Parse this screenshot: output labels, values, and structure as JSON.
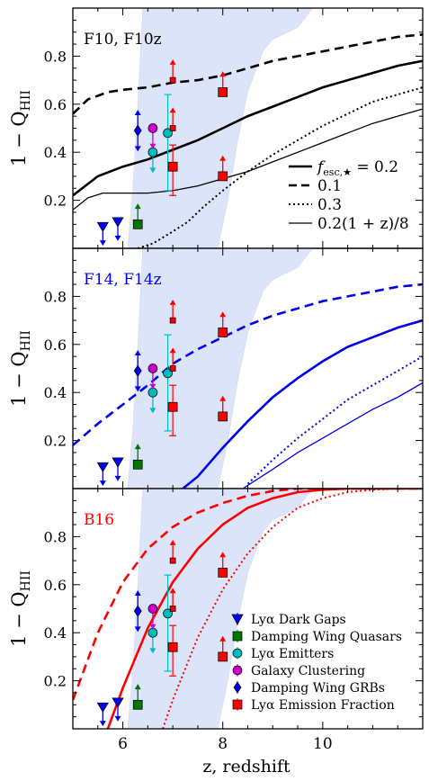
{
  "figure": {
    "xlabel": "z, redshift",
    "ylabel": "1 − Q",
    "ylabel_sub": "HII"
  },
  "chart_data": [
    {
      "type": "line",
      "title": "F10,  F10z",
      "title_color": "#000000",
      "color": "#000000",
      "xlim": [
        5,
        12
      ],
      "ylim": [
        0,
        1
      ],
      "xticks": [
        6,
        8,
        10
      ],
      "yticks": [
        0.2,
        0.4,
        0.6,
        0.8
      ],
      "shaded_band": {
        "color": "#dbe4f8",
        "lower": [
          [
            6.1,
            0.0
          ],
          [
            6.2,
            0.25
          ],
          [
            6.3,
            0.6
          ],
          [
            6.4,
            1.0
          ]
        ],
        "upper": [
          [
            7.9,
            0.0
          ],
          [
            8.1,
            0.2
          ],
          [
            8.3,
            0.45
          ],
          [
            8.5,
            0.65
          ],
          [
            8.8,
            0.82
          ],
          [
            9.0,
            0.87
          ],
          [
            9.5,
            0.92
          ],
          [
            9.8,
            1.0
          ]
        ]
      },
      "series": [
        {
          "name": "f_esc,★ = 0.2",
          "style": "solid-thick",
          "x": [
            5,
            5.5,
            6,
            6.5,
            7,
            7.5,
            8,
            8.5,
            9,
            9.5,
            10,
            10.5,
            11,
            11.5,
            12
          ],
          "y": [
            0.22,
            0.3,
            0.34,
            0.37,
            0.41,
            0.45,
            0.5,
            0.55,
            0.59,
            0.63,
            0.67,
            0.7,
            0.73,
            0.76,
            0.78
          ]
        },
        {
          "name": "0.1",
          "style": "dashed-thick",
          "x": [
            5,
            5.3,
            5.7,
            6,
            6.5,
            7,
            7.5,
            8,
            8.5,
            9,
            9.5,
            10,
            10.5,
            11,
            11.5,
            12
          ],
          "y": [
            0.56,
            0.62,
            0.65,
            0.66,
            0.67,
            0.69,
            0.7,
            0.72,
            0.75,
            0.78,
            0.8,
            0.82,
            0.84,
            0.86,
            0.88,
            0.89
          ]
        },
        {
          "name": "0.3",
          "style": "dotted",
          "x": [
            6.3,
            6.6,
            7,
            7.3,
            7.6,
            8,
            8.5,
            9,
            9.5,
            10,
            10.5,
            11,
            11.5,
            12
          ],
          "y": [
            0.0,
            0.02,
            0.07,
            0.11,
            0.17,
            0.24,
            0.32,
            0.39,
            0.45,
            0.51,
            0.56,
            0.61,
            0.64,
            0.67
          ]
        },
        {
          "name": "0.2(1 + z)/8",
          "style": "solid-thin",
          "x": [
            5,
            5.3,
            5.6,
            6,
            6.5,
            7,
            7.5,
            8,
            8.5,
            9,
            9.5,
            10,
            10.5,
            11,
            11.5,
            12
          ],
          "y": [
            0.16,
            0.21,
            0.23,
            0.23,
            0.23,
            0.24,
            0.26,
            0.29,
            0.32,
            0.36,
            0.4,
            0.44,
            0.48,
            0.52,
            0.55,
            0.58
          ]
        }
      ],
      "legend_position": "lower-right"
    },
    {
      "type": "line",
      "title": "F14,  F14z",
      "title_color": "#0000ee",
      "color": "#0000ee",
      "xlim": [
        5,
        12
      ],
      "ylim": [
        0,
        1
      ],
      "xticks": [
        6,
        8,
        10
      ],
      "yticks": [
        0.2,
        0.4,
        0.6,
        0.8
      ],
      "shaded_band": {
        "color": "#dbe4f8",
        "lower": [
          [
            6.1,
            0.0
          ],
          [
            6.2,
            0.25
          ],
          [
            6.3,
            0.6
          ],
          [
            6.4,
            1.0
          ]
        ],
        "upper": [
          [
            7.9,
            0.0
          ],
          [
            8.1,
            0.2
          ],
          [
            8.3,
            0.45
          ],
          [
            8.5,
            0.65
          ],
          [
            8.8,
            0.82
          ],
          [
            9.0,
            0.87
          ],
          [
            9.5,
            0.92
          ],
          [
            9.8,
            1.0
          ]
        ]
      },
      "series": [
        {
          "name": "0.2",
          "style": "solid-thick",
          "x": [
            7.2,
            7.5,
            8,
            8.5,
            9,
            9.5,
            10,
            10.5,
            11,
            11.5,
            12
          ],
          "y": [
            0.0,
            0.05,
            0.17,
            0.28,
            0.38,
            0.46,
            0.53,
            0.59,
            0.63,
            0.67,
            0.7
          ]
        },
        {
          "name": "0.1",
          "style": "dashed-thick",
          "x": [
            5,
            5.5,
            6,
            6.5,
            7,
            7.5,
            8,
            8.5,
            9,
            9.5,
            10,
            10.5,
            11,
            11.5,
            12
          ],
          "y": [
            0.18,
            0.27,
            0.35,
            0.43,
            0.52,
            0.58,
            0.63,
            0.68,
            0.72,
            0.75,
            0.78,
            0.8,
            0.82,
            0.84,
            0.85
          ]
        },
        {
          "name": "0.3",
          "style": "dotted",
          "x": [
            8.5,
            9,
            9.5,
            10,
            10.5,
            11,
            11.5,
            12
          ],
          "y": [
            0.02,
            0.12,
            0.21,
            0.29,
            0.37,
            0.43,
            0.49,
            0.55
          ]
        },
        {
          "name": "0.2(1 + z)/8",
          "style": "solid-thin",
          "x": [
            8.4,
            9,
            9.5,
            10,
            10.5,
            11,
            11.5,
            12
          ],
          "y": [
            0.0,
            0.08,
            0.15,
            0.21,
            0.27,
            0.33,
            0.38,
            0.44
          ]
        }
      ]
    },
    {
      "type": "line",
      "title": "B16",
      "title_color": "#ff0000",
      "color": "#ff0000",
      "xlim": [
        5,
        12
      ],
      "ylim": [
        0,
        1
      ],
      "xticks": [
        6,
        8,
        10
      ],
      "yticks": [
        0.2,
        0.4,
        0.6,
        0.8
      ],
      "shaded_band": {
        "color": "#dbe4f8",
        "lower": [
          [
            6.1,
            0.0
          ],
          [
            6.2,
            0.25
          ],
          [
            6.3,
            0.6
          ],
          [
            6.4,
            1.0
          ]
        ],
        "upper": [
          [
            7.9,
            0.0
          ],
          [
            8.1,
            0.2
          ],
          [
            8.3,
            0.45
          ],
          [
            8.5,
            0.65
          ],
          [
            8.8,
            0.82
          ],
          [
            9.0,
            0.87
          ],
          [
            9.5,
            0.92
          ],
          [
            9.8,
            1.0
          ]
        ]
      },
      "series": [
        {
          "name": "0.2",
          "style": "solid-thick",
          "x": [
            5.7,
            6,
            6.5,
            7,
            7.5,
            8,
            8.5,
            9,
            9.5,
            10,
            10.5,
            11,
            12
          ],
          "y": [
            0.0,
            0.17,
            0.42,
            0.61,
            0.75,
            0.85,
            0.92,
            0.96,
            0.985,
            0.995,
            1.0,
            1.0,
            1.0
          ]
        },
        {
          "name": "0.1",
          "style": "dashed-thick",
          "x": [
            5,
            5.5,
            6,
            6.5,
            7,
            7.5,
            8,
            8.5,
            9,
            9.5,
            10,
            10.5,
            11,
            12
          ],
          "y": [
            0.12,
            0.4,
            0.61,
            0.75,
            0.84,
            0.9,
            0.94,
            0.97,
            0.99,
            1.0,
            1.0,
            1.0,
            1.0,
            1.0
          ]
        },
        {
          "name": "0.3",
          "style": "dotted",
          "x": [
            6.8,
            7,
            7.5,
            8,
            8.5,
            9,
            9.5,
            10,
            10.5,
            11,
            11.5,
            12
          ],
          "y": [
            0.0,
            0.12,
            0.38,
            0.58,
            0.73,
            0.84,
            0.92,
            0.96,
            0.985,
            0.995,
            1.0,
            1.0
          ]
        }
      ],
      "legend_position": "lower-right"
    }
  ],
  "observations": [
    {
      "label": "Lyα Dark Gaps",
      "marker": "triangle-down",
      "color": "#0000ee",
      "points": [
        {
          "x": 5.6,
          "y": 0.09,
          "limit": "upper"
        },
        {
          "x": 5.9,
          "y": 0.11,
          "limit": "upper"
        }
      ]
    },
    {
      "label": "Damping Wing Quasars",
      "marker": "square",
      "color": "#007700",
      "points": [
        {
          "x": 6.3,
          "y": 0.1,
          "limit": "lower"
        }
      ]
    },
    {
      "label": "Lyα Emitters",
      "marker": "circle",
      "color": "#00bbbb",
      "points": [
        {
          "x": 6.6,
          "y": 0.4,
          "limit": "upper"
        },
        {
          "x": 6.9,
          "y": 0.48,
          "yerr": [
            0.24,
            0.16
          ]
        }
      ]
    },
    {
      "label": "Galaxy Clustering",
      "marker": "circle",
      "color": "#cc00cc",
      "points": [
        {
          "x": 6.6,
          "y": 0.5,
          "limit": "upper"
        }
      ]
    },
    {
      "label": "Damping Wing GRBs",
      "marker": "diamond",
      "color": "#0000ee",
      "points": [
        {
          "x": 6.3,
          "y": 0.49,
          "limit": "both"
        }
      ]
    },
    {
      "label": "Lyα Emission Fraction",
      "marker": "square",
      "color": "#ff0000",
      "points": [
        {
          "x": 7.0,
          "y": 0.7,
          "limit": "lower",
          "size": "small"
        },
        {
          "x": 7.0,
          "y": 0.5,
          "limit": "lower",
          "size": "small"
        },
        {
          "x": 7.0,
          "y": 0.34,
          "yerr": [
            0.12,
            0.09
          ]
        },
        {
          "x": 8.0,
          "y": 0.65,
          "limit": "lower"
        },
        {
          "x": 8.0,
          "y": 0.3,
          "limit": "lower"
        }
      ]
    }
  ]
}
